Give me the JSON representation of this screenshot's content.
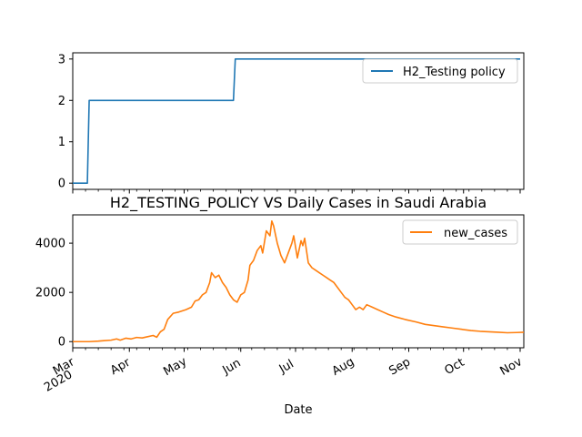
{
  "chart_data": [
    {
      "type": "line",
      "title": "",
      "xlabel": "",
      "ylabel": "",
      "ylim": [
        -0.15,
        3.15
      ],
      "yticks": [
        0,
        1,
        2,
        3
      ],
      "grid": false,
      "legend_placement": "upper-right",
      "series": [
        {
          "name": "H2_Testing policy",
          "color": "#1f77b4",
          "step": true,
          "points": [
            [
              "2020-03-01",
              0
            ],
            [
              "2020-03-09",
              0
            ],
            [
              "2020-03-10",
              2
            ],
            [
              "2020-05-28",
              2
            ],
            [
              "2020-05-29",
              3
            ],
            [
              "2020-11-01",
              3
            ]
          ]
        }
      ]
    },
    {
      "type": "line",
      "title": "H2_TESTING_POLICY VS Daily Cases in Saudi Arabia",
      "xlabel": "Date",
      "ylabel": "",
      "ylim": [
        -250,
        5150
      ],
      "yticks": [
        0,
        2000,
        4000
      ],
      "grid": false,
      "legend_placement": "upper-right",
      "x_range": [
        "2020-03-01",
        "2020-11-03"
      ],
      "xticks": [
        {
          "date": "2020-03-01",
          "label": "Mar",
          "sublabel": "2020"
        },
        {
          "date": "2020-04-01",
          "label": "Apr"
        },
        {
          "date": "2020-05-01",
          "label": "May"
        },
        {
          "date": "2020-06-01",
          "label": "Jun"
        },
        {
          "date": "2020-07-01",
          "label": "Jul"
        },
        {
          "date": "2020-08-01",
          "label": "Aug"
        },
        {
          "date": "2020-09-01",
          "label": "Sep"
        },
        {
          "date": "2020-10-01",
          "label": "Oct"
        },
        {
          "date": "2020-11-01",
          "label": "Nov"
        }
      ],
      "series": [
        {
          "name": "new_cases",
          "color": "#ff7f0e",
          "points": [
            [
              "2020-03-01",
              0
            ],
            [
              "2020-03-10",
              0
            ],
            [
              "2020-03-15",
              20
            ],
            [
              "2020-03-18",
              40
            ],
            [
              "2020-03-22",
              60
            ],
            [
              "2020-03-25",
              110
            ],
            [
              "2020-03-27",
              60
            ],
            [
              "2020-03-30",
              140
            ],
            [
              "2020-04-02",
              110
            ],
            [
              "2020-04-05",
              170
            ],
            [
              "2020-04-08",
              150
            ],
            [
              "2020-04-11",
              200
            ],
            [
              "2020-04-14",
              250
            ],
            [
              "2020-04-16",
              180
            ],
            [
              "2020-04-18",
              400
            ],
            [
              "2020-04-20",
              500
            ],
            [
              "2020-04-22",
              900
            ],
            [
              "2020-04-25",
              1150
            ],
            [
              "2020-04-28",
              1200
            ],
            [
              "2020-05-02",
              1300
            ],
            [
              "2020-05-05",
              1400
            ],
            [
              "2020-05-07",
              1650
            ],
            [
              "2020-05-09",
              1700
            ],
            [
              "2020-05-11",
              1900
            ],
            [
              "2020-05-13",
              2000
            ],
            [
              "2020-05-15",
              2400
            ],
            [
              "2020-05-16",
              2800
            ],
            [
              "2020-05-18",
              2600
            ],
            [
              "2020-05-20",
              2700
            ],
            [
              "2020-05-22",
              2400
            ],
            [
              "2020-05-24",
              2200
            ],
            [
              "2020-05-26",
              1900
            ],
            [
              "2020-05-28",
              1700
            ],
            [
              "2020-05-30",
              1600
            ],
            [
              "2020-06-01",
              1900
            ],
            [
              "2020-06-03",
              2000
            ],
            [
              "2020-06-05",
              2500
            ],
            [
              "2020-06-06",
              3100
            ],
            [
              "2020-06-08",
              3300
            ],
            [
              "2020-06-10",
              3700
            ],
            [
              "2020-06-12",
              3900
            ],
            [
              "2020-06-13",
              3600
            ],
            [
              "2020-06-15",
              4500
            ],
            [
              "2020-06-17",
              4300
            ],
            [
              "2020-06-18",
              4900
            ],
            [
              "2020-06-19",
              4700
            ],
            [
              "2020-06-21",
              4000
            ],
            [
              "2020-06-23",
              3500
            ],
            [
              "2020-06-25",
              3200
            ],
            [
              "2020-06-27",
              3600
            ],
            [
              "2020-06-29",
              4000
            ],
            [
              "2020-06-30",
              4300
            ],
            [
              "2020-07-02",
              3400
            ],
            [
              "2020-07-04",
              4100
            ],
            [
              "2020-07-05",
              3900
            ],
            [
              "2020-07-06",
              4200
            ],
            [
              "2020-07-08",
              3200
            ],
            [
              "2020-07-10",
              3000
            ],
            [
              "2020-07-12",
              2900
            ],
            [
              "2020-07-14",
              2800
            ],
            [
              "2020-07-16",
              2700
            ],
            [
              "2020-07-18",
              2600
            ],
            [
              "2020-07-20",
              2500
            ],
            [
              "2020-07-22",
              2400
            ],
            [
              "2020-07-24",
              2200
            ],
            [
              "2020-07-26",
              2000
            ],
            [
              "2020-07-28",
              1800
            ],
            [
              "2020-07-30",
              1700
            ],
            [
              "2020-08-01",
              1500
            ],
            [
              "2020-08-03",
              1300
            ],
            [
              "2020-08-05",
              1400
            ],
            [
              "2020-08-07",
              1300
            ],
            [
              "2020-08-09",
              1500
            ],
            [
              "2020-08-12",
              1400
            ],
            [
              "2020-08-15",
              1300
            ],
            [
              "2020-08-18",
              1200
            ],
            [
              "2020-08-21",
              1100
            ],
            [
              "2020-08-25",
              1000
            ],
            [
              "2020-08-30",
              900
            ],
            [
              "2020-09-05",
              800
            ],
            [
              "2020-09-10",
              700
            ],
            [
              "2020-09-15",
              650
            ],
            [
              "2020-09-20",
              600
            ],
            [
              "2020-09-25",
              550
            ],
            [
              "2020-09-30",
              500
            ],
            [
              "2020-10-05",
              450
            ],
            [
              "2020-10-10",
              420
            ],
            [
              "2020-10-15",
              400
            ],
            [
              "2020-10-20",
              380
            ],
            [
              "2020-10-25",
              360
            ],
            [
              "2020-10-30",
              370
            ],
            [
              "2020-11-03",
              380
            ]
          ]
        }
      ]
    }
  ]
}
